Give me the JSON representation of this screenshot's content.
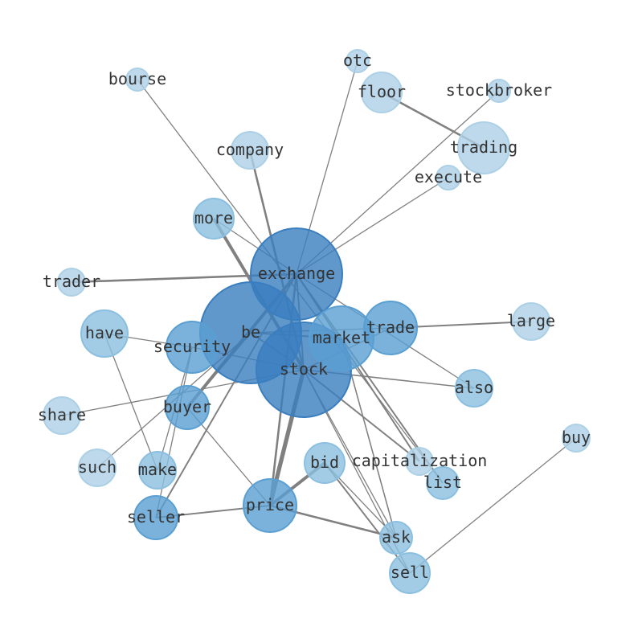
{
  "diagram": {
    "type": "network",
    "edge_color": "#808080",
    "node_colors": {
      "tier1": "#3a7ebf",
      "tier2": "#5a9fd2",
      "tier3": "#8bbfe0",
      "tier4": "#acd0e6"
    },
    "nodes": [
      {
        "label": "exchange",
        "tier": "tier1"
      },
      {
        "label": "be",
        "tier": "tier1"
      },
      {
        "label": "stock",
        "tier": "tier1"
      },
      {
        "label": "market",
        "tier": "tier2"
      },
      {
        "label": "trade",
        "tier": "tier2"
      },
      {
        "label": "security",
        "tier": "tier2"
      },
      {
        "label": "buyer",
        "tier": "tier2"
      },
      {
        "label": "price",
        "tier": "tier2"
      },
      {
        "label": "seller",
        "tier": "tier2"
      },
      {
        "label": "have",
        "tier": "tier3"
      },
      {
        "label": "more",
        "tier": "tier3"
      },
      {
        "label": "also",
        "tier": "tier3"
      },
      {
        "label": "bid",
        "tier": "tier3"
      },
      {
        "label": "make",
        "tier": "tier3"
      },
      {
        "label": "list",
        "tier": "tier3"
      },
      {
        "label": "ask",
        "tier": "tier3"
      },
      {
        "label": "sell",
        "tier": "tier3"
      },
      {
        "label": "trader",
        "tier": "tier4"
      },
      {
        "label": "company",
        "tier": "tier4"
      },
      {
        "label": "bourse",
        "tier": "tier4"
      },
      {
        "label": "otc",
        "tier": "tier4"
      },
      {
        "label": "floor",
        "tier": "tier4"
      },
      {
        "label": "stockbroker",
        "tier": "tier4"
      },
      {
        "label": "trading",
        "tier": "tier4"
      },
      {
        "label": "execute",
        "tier": "tier4"
      },
      {
        "label": "large",
        "tier": "tier4"
      },
      {
        "label": "share",
        "tier": "tier4"
      },
      {
        "label": "such",
        "tier": "tier4"
      },
      {
        "label": "capitalization",
        "tier": "tier4"
      },
      {
        "label": "buy",
        "tier": "tier4"
      }
    ],
    "edges": [
      [
        "exchange",
        "trader",
        2
      ],
      [
        "exchange",
        "more",
        1
      ],
      [
        "exchange",
        "otc",
        1
      ],
      [
        "exchange",
        "stockbroker",
        1
      ],
      [
        "exchange",
        "execute",
        1
      ],
      [
        "exchange",
        "also",
        1
      ],
      [
        "exchange",
        "capitalization",
        1.5
      ],
      [
        "exchange",
        "list",
        1.5
      ],
      [
        "exchange",
        "buyer",
        3
      ],
      [
        "exchange",
        "seller",
        1.5
      ],
      [
        "exchange",
        "stock",
        1.5
      ],
      [
        "exchange",
        "price",
        2
      ],
      [
        "bourse",
        "list",
        1
      ],
      [
        "company",
        "stock",
        2
      ],
      [
        "floor",
        "trading",
        2
      ],
      [
        "more",
        "stock",
        3
      ],
      [
        "have",
        "make",
        1
      ],
      [
        "have",
        "security",
        1
      ],
      [
        "security",
        "seller",
        1
      ],
      [
        "security",
        "make",
        1
      ],
      [
        "security",
        "stock",
        1
      ],
      [
        "be",
        "market",
        1.5
      ],
      [
        "be",
        "trade",
        1
      ],
      [
        "be",
        "buyer",
        1.5
      ],
      [
        "be",
        "such",
        1
      ],
      [
        "be",
        "stock",
        1.5
      ],
      [
        "stock",
        "share",
        1
      ],
      [
        "stock",
        "price",
        4
      ],
      [
        "stock",
        "also",
        1.2
      ],
      [
        "stock",
        "capitalization",
        1.5
      ],
      [
        "stock",
        "ask",
        1
      ],
      [
        "stock",
        "sell",
        1
      ],
      [
        "trade",
        "large",
        1.5
      ],
      [
        "trade",
        "stock",
        1
      ],
      [
        "market",
        "ask",
        1.2
      ],
      [
        "buyer",
        "price",
        1
      ],
      [
        "seller",
        "price",
        1.5
      ],
      [
        "price",
        "ask",
        2
      ],
      [
        "price",
        "bid",
        3
      ],
      [
        "bid",
        "sell",
        1.5
      ],
      [
        "bid",
        "ask",
        1
      ],
      [
        "sell",
        "buy",
        1
      ]
    ]
  }
}
